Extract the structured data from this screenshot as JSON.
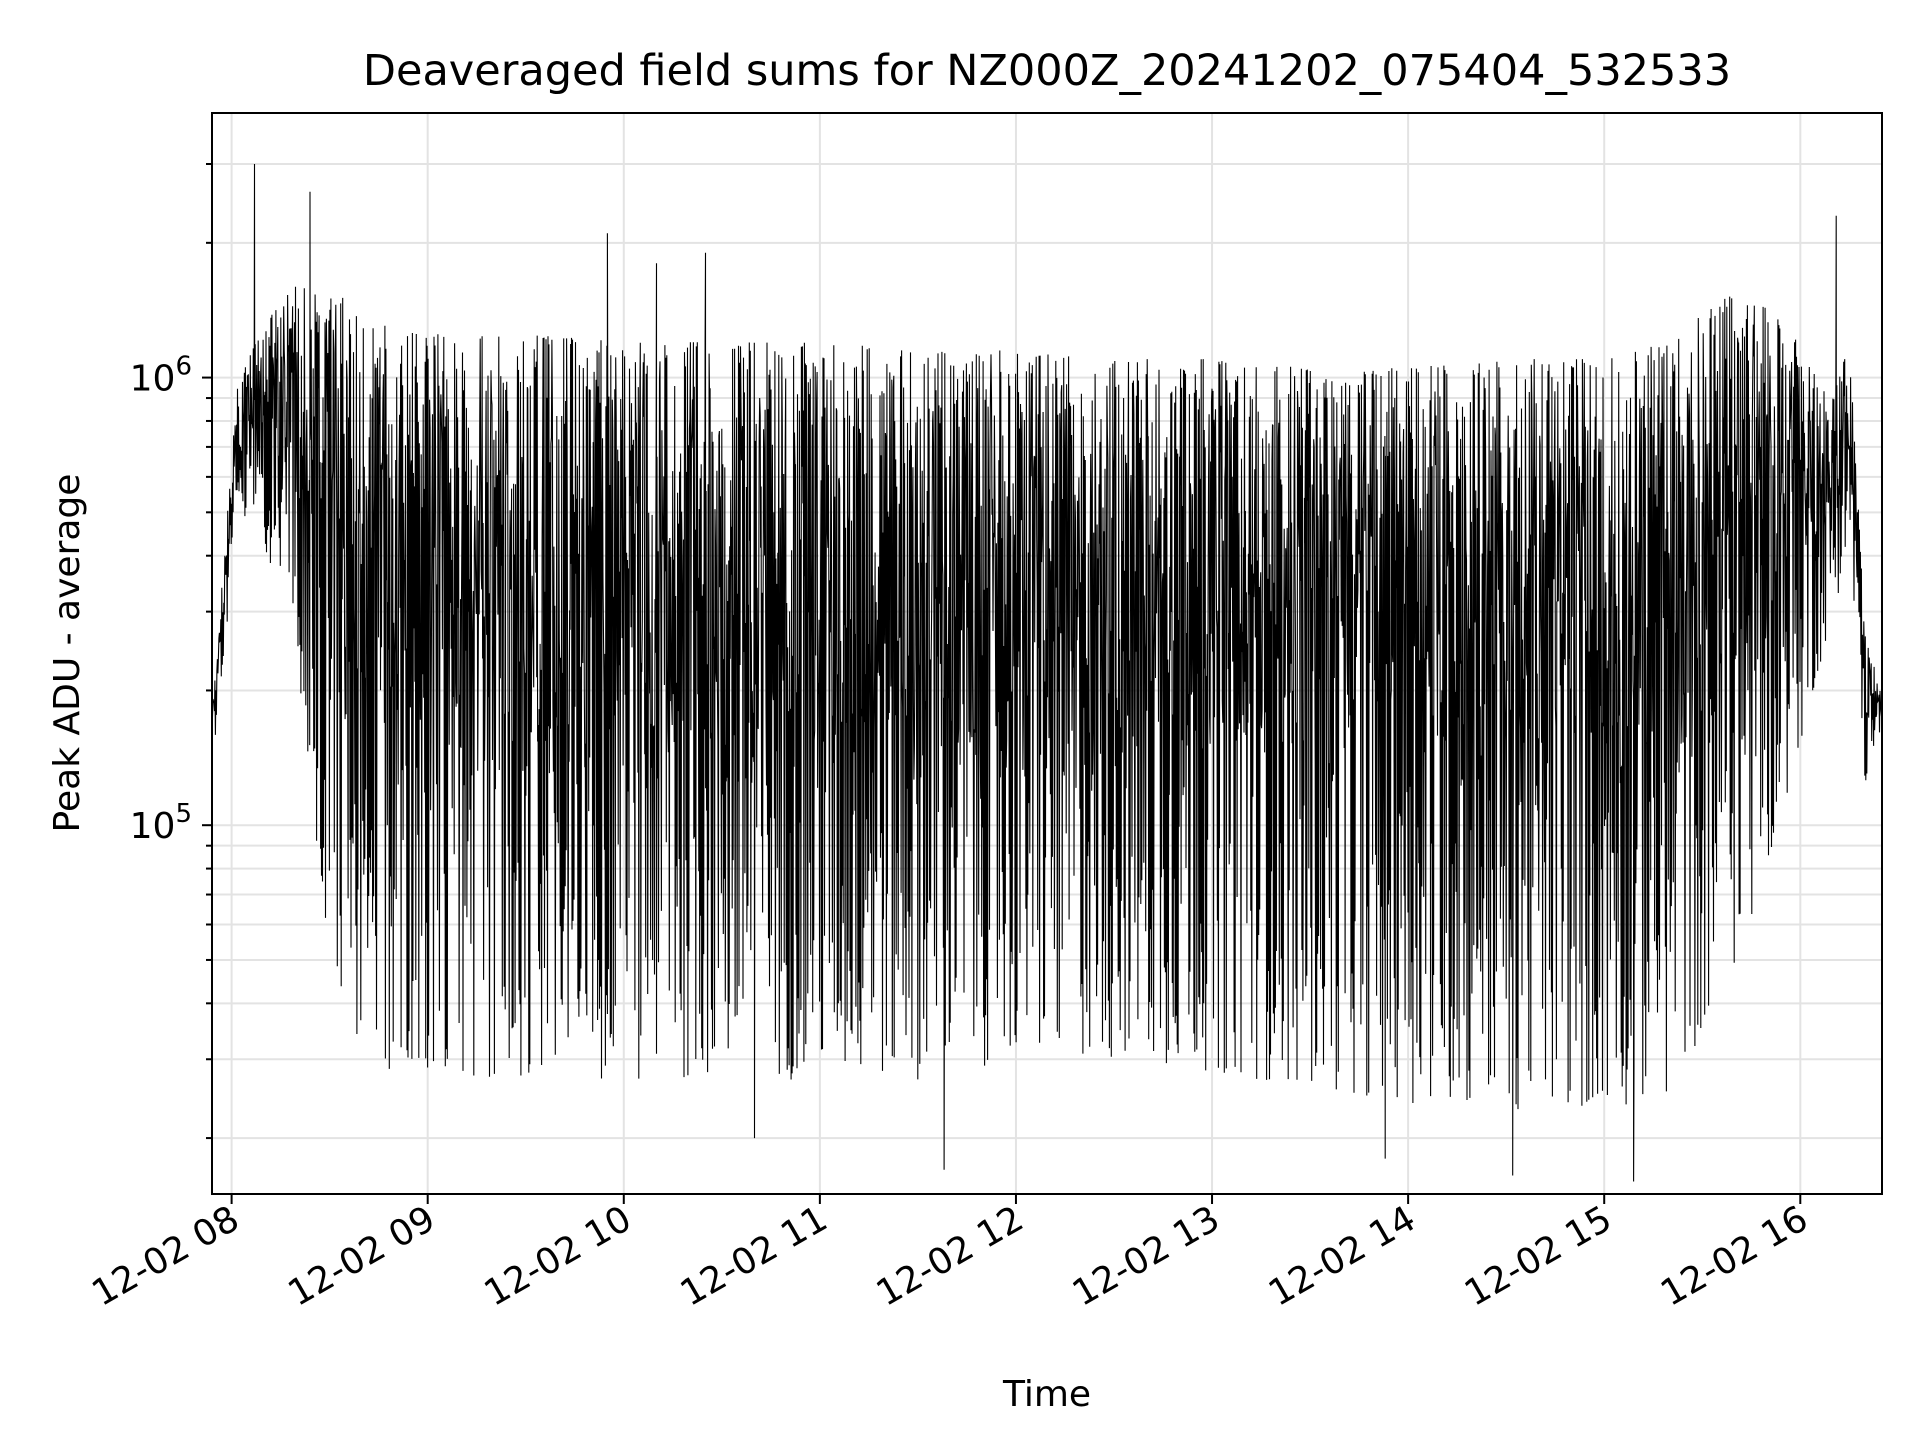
{
  "chart_data": {
    "type": "line",
    "title": "Deaveraged field sums for NZ000Z_20241202_075404_532533",
    "xlabel": "Time",
    "ylabel": "Peak ADU - average",
    "yscale": "log",
    "ylim": [
      15000,
      3900000
    ],
    "xlim": [
      "2024-12-02 07:54",
      "2024-12-02 16:25"
    ],
    "grid": true,
    "line_color": "#000000",
    "x_ticks": [
      "12-02 08",
      "12-02 09",
      "12-02 10",
      "12-02 11",
      "12-02 12",
      "12-02 13",
      "12-02 14",
      "12-02 15",
      "12-02 16"
    ],
    "y_ticks": [
      {
        "base": "10",
        "exp": "5",
        "value": 100000
      },
      {
        "base": "10",
        "exp": "6",
        "value": 1000000
      }
    ],
    "series": [
      {
        "envelope": {
          "times": [
            "2024-12-02 07:54",
            "2024-12-02 08:02",
            "2024-12-02 08:10",
            "2024-12-02 08:18",
            "2024-12-02 08:30",
            "2024-12-02 08:40",
            "2024-12-02 08:50",
            "2024-12-02 09:00",
            "2024-12-02 09:30",
            "2024-12-02 10:00",
            "2024-12-02 10:30",
            "2024-12-02 11:00",
            "2024-12-02 11:30",
            "2024-12-02 12:00",
            "2024-12-02 12:30",
            "2024-12-02 13:00",
            "2024-12-02 13:30",
            "2024-12-02 14:00",
            "2024-12-02 14:30",
            "2024-12-02 15:00",
            "2024-12-02 15:20",
            "2024-12-02 15:35",
            "2024-12-02 15:45",
            "2024-12-02 16:00",
            "2024-12-02 16:10",
            "2024-12-02 16:15",
            "2024-12-02 16:20",
            "2024-12-02 16:25"
          ],
          "upper": [
            180000,
            1000000,
            1300000,
            1600000,
            1600000,
            1400000,
            1300000,
            1250000,
            1250000,
            1200000,
            1200000,
            1200000,
            1150000,
            1150000,
            1100000,
            1100000,
            1050000,
            1050000,
            1100000,
            1100000,
            1200000,
            1500000,
            1550000,
            1200000,
            900000,
            1200000,
            260000,
            200000
          ],
          "lower": [
            130000,
            500000,
            400000,
            300000,
            50000,
            30000,
            28000,
            28000,
            27000,
            27000,
            27000,
            27000,
            27000,
            30000,
            30000,
            28000,
            26000,
            24000,
            23000,
            23000,
            25000,
            40000,
            60000,
            150000,
            300000,
            400000,
            120000,
            150000
          ]
        },
        "spikes": [
          {
            "time": "2024-12-02 08:07",
            "value": 3000000
          },
          {
            "time": "2024-12-02 08:24",
            "value": 2600000
          },
          {
            "time": "2024-12-02 09:55",
            "value": 2100000
          },
          {
            "time": "2024-12-02 10:10",
            "value": 1800000
          },
          {
            "time": "2024-12-02 10:25",
            "value": 1900000
          },
          {
            "time": "2024-12-02 16:11",
            "value": 2300000
          },
          {
            "time": "2024-12-02 10:40",
            "value": 20000
          },
          {
            "time": "2024-12-02 11:38",
            "value": 17000
          },
          {
            "time": "2024-12-02 13:53",
            "value": 18000
          },
          {
            "time": "2024-12-02 14:32",
            "value": 16500
          },
          {
            "time": "2024-12-02 15:09",
            "value": 16000
          }
        ]
      }
    ]
  }
}
